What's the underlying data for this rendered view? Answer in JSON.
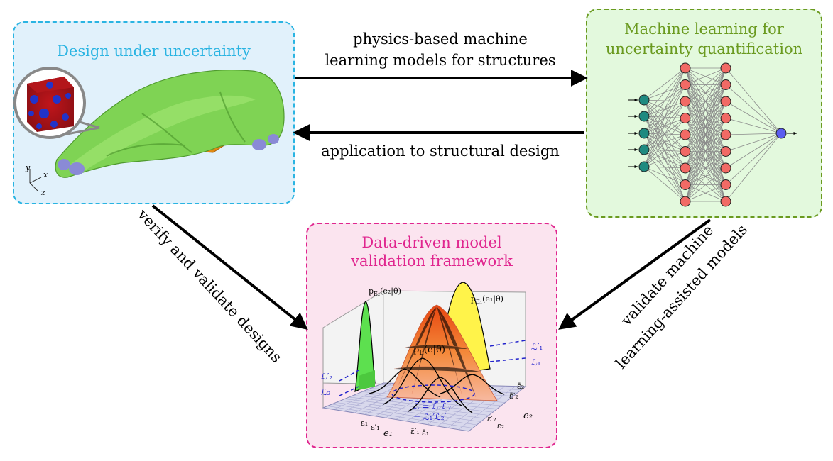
{
  "boxes": {
    "design": {
      "title": "Design under uncertainty",
      "color": "#2ab4e2"
    },
    "ml": {
      "title_line1": "Machine learning for",
      "title_line2": "uncertainty quantification",
      "color": "#6a9a1f"
    },
    "validation": {
      "title_line1": "Data-driven model",
      "title_line2": "validation framework",
      "color": "#e0268f"
    }
  },
  "arrows": {
    "top_line1": "physics-based machine",
    "top_line2": "learning models for structures",
    "bottom": "application to structural design",
    "left_diag": "verify and validate designs",
    "right_line1": "validate machine",
    "right_line2": "learning-assisted models"
  },
  "design_figure": {
    "axis_x": "x",
    "axis_y": "y",
    "axis_z": "z"
  },
  "validation_figure": {
    "pdf_main": "p",
    "pdf_main_sub": "E",
    "pdf_main_arg": "(e|θ)",
    "pdf_e1": "p",
    "pdf_e1_sub": "E₁",
    "pdf_e1_arg": "(e₁|θ)",
    "pdf_e2": "p",
    "pdf_e2_sub": "E₂",
    "pdf_e2_arg": "(e₂|θ)",
    "l1p": "ℒ′₁",
    "l1": "ℒ₁",
    "l2p": "ℒ′₂",
    "l2": "ℒ₂",
    "lprod1": "ℒ = ℒ₁ℒ₂",
    "lprod2": "= ℒ₁′ℒ₂′",
    "e1": "e₁",
    "e2": "e₂",
    "eps1": "ε₁",
    "eps1p": "ε′₁",
    "eps1pbar": "ε̄′₁",
    "eps1bar": "ε̄₁",
    "eps2": "ε₂",
    "eps2p": "ε′₂",
    "eps2pbar": "ε̄′₂",
    "eps2bar": "ε̄₂"
  },
  "colors": {
    "neuron_input": "#1f8a80",
    "neuron_hidden": "#f16a65",
    "neuron_output": "#5b5cf0",
    "mesh": "#d8d8ec",
    "green_pdf": "#5de04f",
    "yellow_pdf": "#fff34a",
    "part": "#7fd354",
    "bracket": "#e08a12"
  }
}
